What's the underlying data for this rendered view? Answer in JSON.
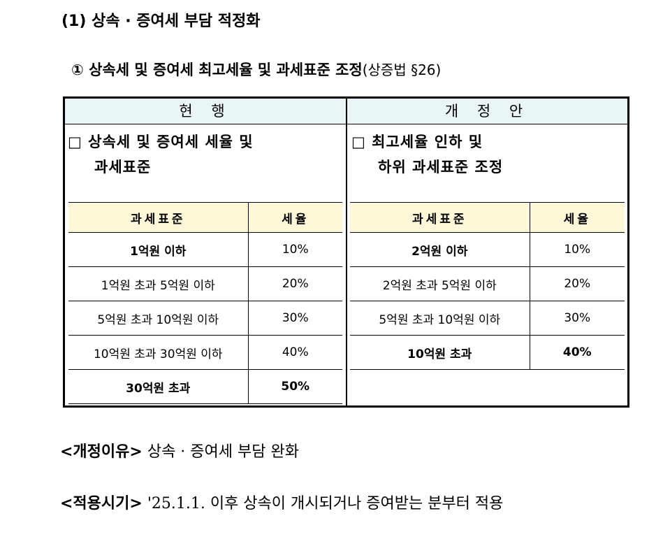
{
  "section_title": "(1) 상속 · 증여세 부담 적정화",
  "subsection": {
    "title": "① 상속세 및 증여세 최고세율 및 과세표준 조정",
    "reference": "(상증법 §26)"
  },
  "current": {
    "header": "현 행",
    "box_line1": "□ 상속세 및 증여세 세율 및",
    "box_line2": "과세표준",
    "table_headers": [
      "과세표준",
      "세율"
    ],
    "rows": [
      {
        "bracket": "1억원 이하",
        "rate": "10%"
      },
      {
        "bracket": "1억원 초과 5억원 이하",
        "rate": "20%"
      },
      {
        "bracket": "5억원 초과 10억원 이하",
        "rate": "30%"
      },
      {
        "bracket": "10억원 초과 30억원 이하",
        "rate": "40%"
      },
      {
        "bracket": "30억원 초과",
        "rate": "50%"
      }
    ]
  },
  "proposal": {
    "header": "개 정 안",
    "box_line1": "□ 최고세율 인하 및",
    "box_line2": "하위 과세표준 조정",
    "table_headers": [
      "과세표준",
      "세율"
    ],
    "rows": [
      {
        "bracket": "2억원 이하",
        "rate": "10%"
      },
      {
        "bracket": "2억원 초과 5억원 이하",
        "rate": "20%"
      },
      {
        "bracket": "5억원 초과 10억원 이하",
        "rate": "30%"
      },
      {
        "bracket": "10억원 초과",
        "rate": "40%"
      }
    ]
  },
  "reason": {
    "label": "<개정이유>",
    "text": "상속 · 증여세 부담 완화"
  },
  "effective": {
    "label": "<적용시기>",
    "text": "'25.1.1. 이후 상속이 개시되거나 증여받는 분부터 적용"
  }
}
